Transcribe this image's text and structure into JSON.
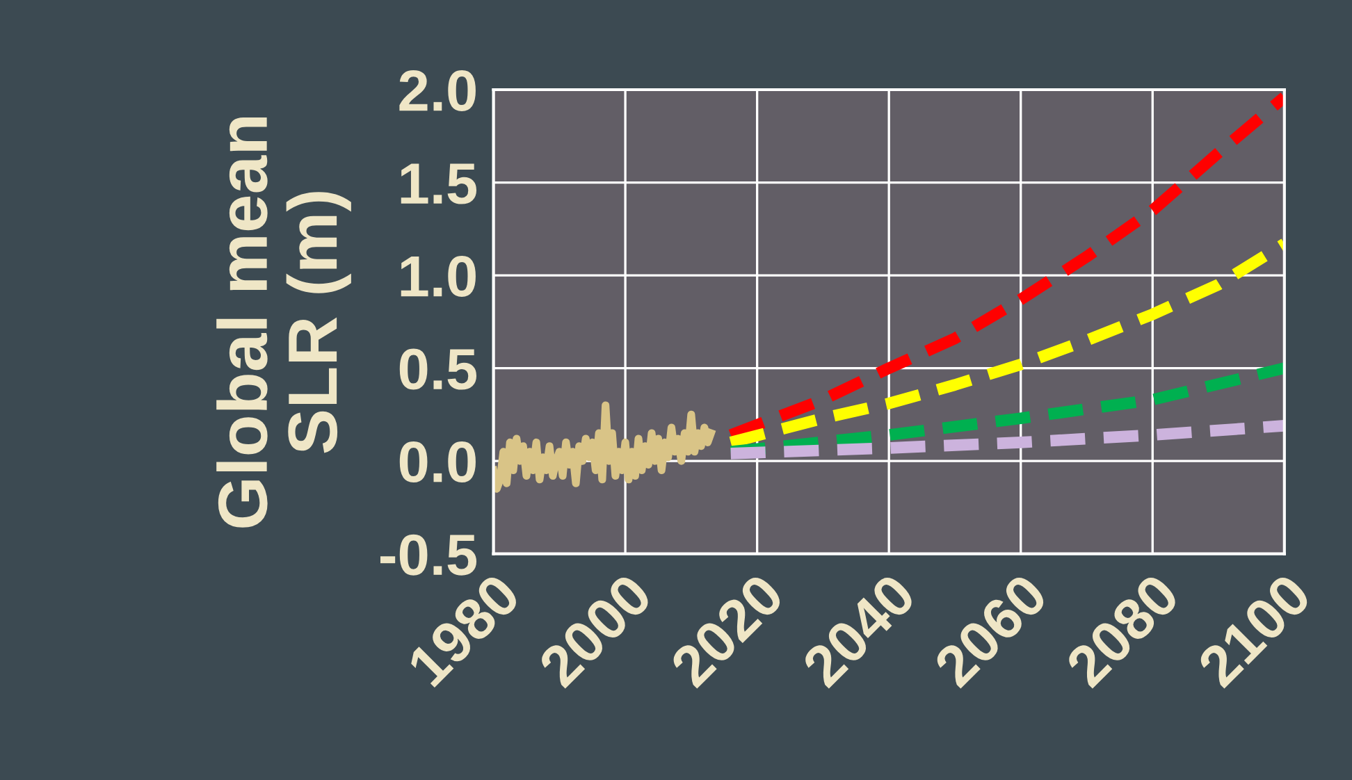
{
  "chart_data": {
    "type": "line",
    "ylabel": "Global mean\nSLR (m)",
    "xlim": [
      1980,
      2100
    ],
    "xticks": [
      1980,
      2000,
      2020,
      2040,
      2060,
      2080,
      2100
    ],
    "ylim": [
      -0.5,
      2.0
    ],
    "yticks": [
      -0.5,
      {
        "value": 0,
        "label": "0.0"
      },
      0.5,
      {
        "value": 1,
        "label": "1.0"
      },
      1.5,
      {
        "value": 2,
        "label": "2.0"
      }
    ],
    "grid": true,
    "marker": "none",
    "series": [
      {
        "color": "#d9c487",
        "line_style": "solid",
        "x": [
          1980,
          1980.5,
          1981,
          1981.5,
          1982,
          1982.5,
          1983,
          1983.5,
          1984,
          1984.5,
          1985,
          1985.5,
          1986,
          1986.5,
          1987,
          1987.5,
          1988,
          1988.5,
          1989,
          1989.5,
          1990,
          1990.5,
          1991,
          1991.5,
          1992,
          1992.5,
          1993,
          1993.5,
          1994,
          1994.5,
          1995,
          1995.5,
          1996,
          1996.5,
          1997,
          1997.5,
          1998,
          1998.5,
          1999,
          1999.5,
          2000,
          2000.5,
          2001,
          2001.5,
          2002,
          2002.5,
          2003,
          2003.5,
          2004,
          2004.5,
          2005,
          2005.5,
          2006,
          2006.5,
          2007,
          2007.5,
          2008,
          2008.5,
          2009,
          2009.5,
          2010,
          2010.5,
          2011,
          2011.5,
          2012,
          2012.5,
          2013
        ],
        "values": [
          -0.05,
          -0.15,
          -0.1,
          0.05,
          -0.12,
          0.1,
          -0.05,
          0.12,
          0.0,
          0.08,
          -0.08,
          0.05,
          -0.05,
          0.1,
          -0.1,
          0.02,
          -0.05,
          0.08,
          -0.08,
          0.0,
          0.05,
          -0.08,
          0.1,
          -0.02,
          0.05,
          -0.12,
          0.08,
          0.0,
          0.12,
          0.02,
          0.1,
          -0.05,
          0.15,
          -0.1,
          0.3,
          0.0,
          0.15,
          -0.08,
          0.05,
          -0.05,
          0.1,
          -0.1,
          0.05,
          -0.08,
          0.12,
          -0.05,
          0.08,
          -0.02,
          0.15,
          0.0,
          0.12,
          -0.05,
          0.1,
          0.02,
          0.18,
          0.05,
          0.12,
          0.0,
          0.15,
          0.05,
          0.25,
          0.05,
          0.15,
          0.08,
          0.18,
          0.1,
          0.15
        ]
      },
      {
        "color": "#ff0000",
        "line_style": "dashed",
        "x": [
          2016,
          2030,
          2040,
          2050,
          2060,
          2070,
          2080,
          2090,
          2100
        ],
        "values": [
          0.14,
          0.33,
          0.5,
          0.66,
          0.87,
          1.1,
          1.35,
          1.66,
          1.96
        ]
      },
      {
        "color": "#ffff00",
        "line_style": "dashed",
        "x": [
          2016,
          2030,
          2040,
          2050,
          2060,
          2070,
          2080,
          2090,
          2100
        ],
        "values": [
          0.1,
          0.23,
          0.31,
          0.41,
          0.52,
          0.65,
          0.79,
          0.95,
          1.17
        ]
      },
      {
        "color": "#00b050",
        "line_style": "dashed",
        "x": [
          2016,
          2040,
          2060,
          2080,
          2100
        ],
        "values": [
          0.05,
          0.14,
          0.23,
          0.33,
          0.5
        ]
      },
      {
        "color": "#ccb3dd",
        "line_style": "dashed",
        "x": [
          2016,
          2040,
          2060,
          2080,
          2100
        ],
        "values": [
          0.04,
          0.07,
          0.1,
          0.14,
          0.19
        ]
      }
    ]
  }
}
